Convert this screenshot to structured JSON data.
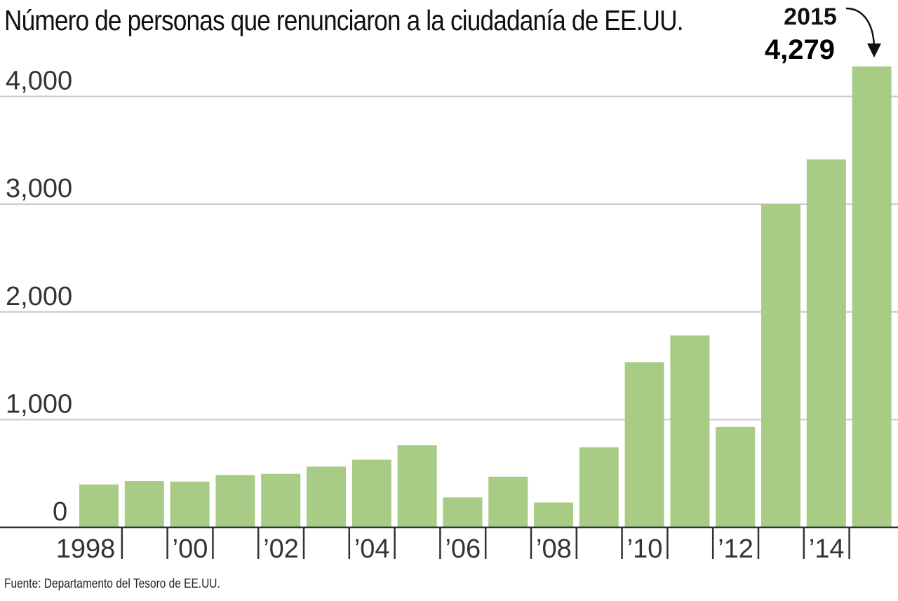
{
  "chart_data": {
    "type": "bar",
    "title": "Número de personas que renunciaron a la ciudadanía de EE.UU.",
    "source": "Fuente: Departamento del Tesoro de EE.UU.",
    "categories": [
      "1998",
      "1999",
      "2000",
      "2001",
      "2002",
      "2003",
      "2004",
      "2005",
      "2006",
      "2007",
      "2008",
      "2009",
      "2010",
      "2011",
      "2012",
      "2013",
      "2014",
      "2015"
    ],
    "x_tick_labels": [
      {
        "category": "1998",
        "label": "1998"
      },
      {
        "category": "2000",
        "label": "’00"
      },
      {
        "category": "2002",
        "label": "’02"
      },
      {
        "category": "2004",
        "label": "’04"
      },
      {
        "category": "2006",
        "label": "’06"
      },
      {
        "category": "2008",
        "label": "’08"
      },
      {
        "category": "2010",
        "label": "’10"
      },
      {
        "category": "2012",
        "label": "’12"
      },
      {
        "category": "2014",
        "label": "’14"
      }
    ],
    "values": [
      398,
      429,
      425,
      486,
      497,
      564,
      628,
      762,
      278,
      470,
      231,
      743,
      1534,
      1781,
      932,
      2999,
      3415,
      4279
    ],
    "ylim": [
      0,
      4279
    ],
    "yticks": [
      {
        "value": 0,
        "label": "0"
      },
      {
        "value": 1000,
        "label": "1,000"
      },
      {
        "value": 2000,
        "label": "2,000"
      },
      {
        "value": 3000,
        "label": "3,000"
      },
      {
        "value": 4000,
        "label": "4,000"
      }
    ],
    "grid": true,
    "annotation": {
      "year": "2015",
      "value": "4,279"
    },
    "colors": {
      "bar": "#a8cc86",
      "grid": "#c8c8c8",
      "axis": "#333333"
    }
  }
}
